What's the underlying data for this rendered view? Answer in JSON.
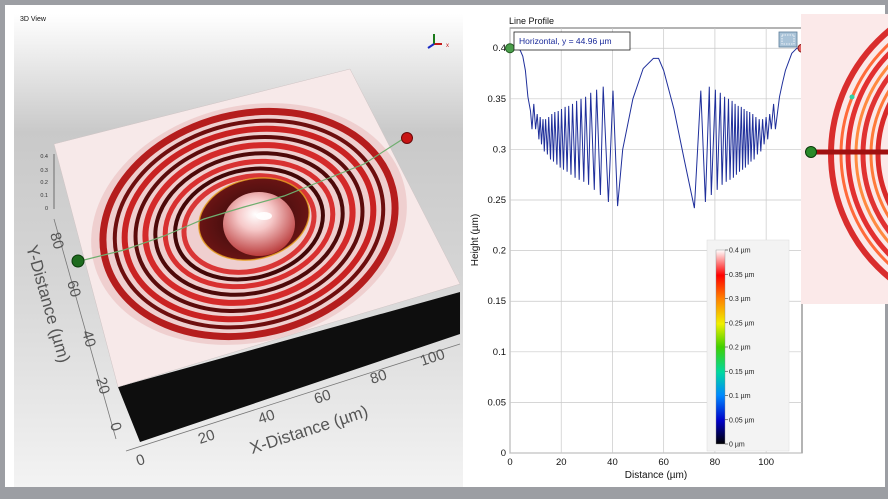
{
  "view3d": {
    "title": "3D View",
    "x_axis_label": "X-Distance (µm)",
    "y_axis_label": "Y-Distance (µm)",
    "x_ticks": [
      "0",
      "20",
      "40",
      "60",
      "80",
      "100"
    ],
    "y_ticks": [
      "0",
      "20",
      "40",
      "60",
      "80"
    ],
    "z_ticks": [
      "0.4",
      "0.3",
      "0.2",
      "0.1",
      "0"
    ],
    "triad_x": "x"
  },
  "line_profile": {
    "title": "Line Profile",
    "badge": "Horizontal, y = 44.96 µm",
    "settings_icon": "settings-icon"
  },
  "colorbar": {
    "labels": [
      "0.4 µm",
      "0.35 µm",
      "0.3 µm",
      "0.25 µm",
      "0.2 µm",
      "0.15 µm",
      "0.1 µm",
      "0.05 µm",
      "0 µm"
    ]
  },
  "chart_data": {
    "type": "line",
    "title": "Line Profile",
    "xlabel": "Distance (µm)",
    "ylabel": "Height (µm)",
    "xlim": [
      0,
      114
    ],
    "ylim": [
      0,
      0.42
    ],
    "x_ticks": [
      "0",
      "20",
      "40",
      "60",
      "80",
      "100"
    ],
    "y_ticks": [
      "0",
      "0.05",
      "0.1",
      "0.15",
      "0.2",
      "0.25",
      "0.3",
      "0.35",
      "0.4"
    ],
    "grid": true,
    "line_color": "#1f2f9b",
    "series": [
      {
        "x": [
          0,
          2,
          4,
          5,
          6,
          7,
          8,
          8.6,
          9.3,
          10,
          10.6,
          11.3,
          11.8,
          12.3,
          12.9,
          13.4,
          13.9,
          14.6,
          15.1,
          15.8,
          16.3,
          17.0,
          17.5,
          18.3,
          18.8,
          19.6,
          20.1,
          20.9,
          21.5,
          22.3,
          22.9,
          23.8,
          24.4,
          25.4,
          26.0,
          27.0,
          27.7,
          28.8,
          29.5,
          30.7,
          31.5,
          32.9,
          33.8,
          35.3,
          36.4,
          38.4,
          40.2,
          42.0,
          44,
          48,
          52,
          56,
          58,
          60,
          64,
          68,
          72,
          74.5,
          76.3,
          77.8,
          78.6,
          80.2,
          80.9,
          82.1,
          82.8,
          83.8,
          84.4,
          85.3,
          85.9,
          86.7,
          87.2,
          87.9,
          88.4,
          89.1,
          89.6,
          90.3,
          90.8,
          91.4,
          91.9,
          92.5,
          93.0,
          93.6,
          94.1,
          94.8,
          95.3,
          96.0,
          96.6,
          97.3,
          97.9,
          98.6,
          99.2,
          100.0,
          100.6,
          101.4,
          102.0,
          102.9,
          103.6,
          104.5,
          105.2,
          106.3,
          107.5,
          110,
          112,
          114
        ],
        "y": [
          0.4,
          0.4,
          0.398,
          0.392,
          0.378,
          0.352,
          0.338,
          0.32,
          0.345,
          0.32,
          0.335,
          0.31,
          0.332,
          0.305,
          0.33,
          0.298,
          0.33,
          0.295,
          0.332,
          0.29,
          0.335,
          0.288,
          0.337,
          0.285,
          0.338,
          0.282,
          0.34,
          0.28,
          0.342,
          0.278,
          0.343,
          0.275,
          0.345,
          0.272,
          0.348,
          0.27,
          0.35,
          0.268,
          0.352,
          0.265,
          0.356,
          0.26,
          0.359,
          0.255,
          0.362,
          0.248,
          0.358,
          0.244,
          0.3,
          0.35,
          0.38,
          0.39,
          0.39,
          0.378,
          0.34,
          0.29,
          0.242,
          0.358,
          0.248,
          0.362,
          0.255,
          0.359,
          0.26,
          0.356,
          0.265,
          0.352,
          0.268,
          0.35,
          0.27,
          0.348,
          0.272,
          0.345,
          0.275,
          0.343,
          0.278,
          0.342,
          0.28,
          0.34,
          0.282,
          0.338,
          0.285,
          0.337,
          0.288,
          0.335,
          0.29,
          0.332,
          0.295,
          0.33,
          0.298,
          0.33,
          0.305,
          0.332,
          0.31,
          0.335,
          0.32,
          0.345,
          0.32,
          0.338,
          0.352,
          0.365,
          0.378,
          0.395,
          0.4,
          0.4
        ]
      }
    ]
  }
}
